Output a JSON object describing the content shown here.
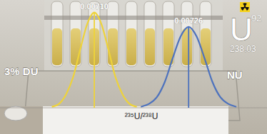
{
  "chart_data": {
    "type": "line",
    "x_label": "²³⁵U/²³⁸U",
    "xlim": [
      0.00694,
      0.007393
    ],
    "ylim": [
      0,
      1.05
    ],
    "tick_labels": false,
    "grid": false,
    "series": [
      {
        "name": "3% DU",
        "color": "#eed33a",
        "mean": 0.0071,
        "mean_label": "0.00710",
        "x": [
          0.007028,
          0.00704,
          0.007052,
          0.007064,
          0.007076,
          0.007088,
          0.0071,
          0.007112,
          0.007124,
          0.007136,
          0.007148,
          0.00716,
          0.007172
        ],
        "values": [
          0.01,
          0.04,
          0.14,
          0.32,
          0.61,
          0.88,
          1.0,
          0.88,
          0.61,
          0.32,
          0.14,
          0.04,
          0.01
        ]
      },
      {
        "name": "NU",
        "color": "#4d72bd",
        "mean": 0.00726,
        "mean_label": "0.00726",
        "x": [
          0.007179,
          0.0071925,
          0.007206,
          0.0072195,
          0.007233,
          0.0072465,
          0.00726,
          0.0072735,
          0.007287,
          0.0073005,
          0.007314,
          0.0073275,
          0.007341
        ],
        "values": [
          0.01,
          0.04,
          0.11,
          0.27,
          0.52,
          0.75,
          0.85,
          0.75,
          0.52,
          0.27,
          0.11,
          0.04,
          0.01
        ]
      }
    ],
    "element": {
      "symbol": "U",
      "atomic_number": 92,
      "atomic_mass": 238.03
    }
  }
}
